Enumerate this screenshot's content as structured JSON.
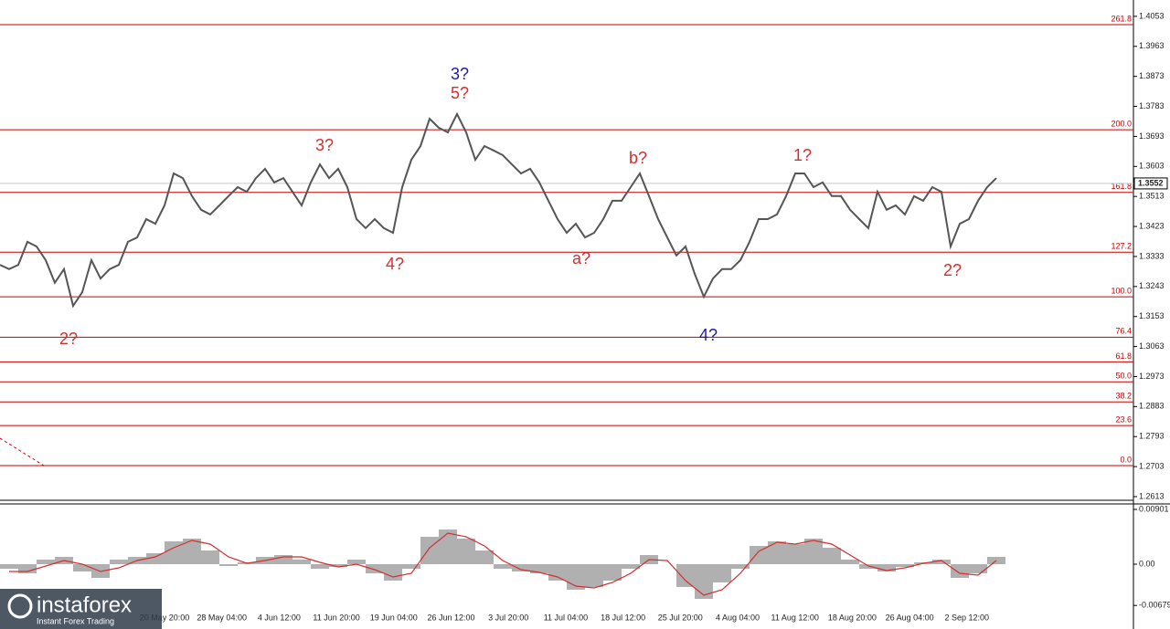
{
  "chart_data": {
    "type": "price_chart",
    "price": {
      "color": "#555555",
      "values": [
        1.3308,
        1.3295,
        1.3308,
        1.3377,
        1.3363,
        1.3322,
        1.3254,
        1.3295,
        1.3185,
        1.3226,
        1.3322,
        1.3267,
        1.3295,
        1.3308,
        1.3377,
        1.339,
        1.3445,
        1.3431,
        1.3486,
        1.3582,
        1.3568,
        1.3514,
        1.3473,
        1.3459,
        1.3486,
        1.3514,
        1.3541,
        1.3527,
        1.3568,
        1.3596,
        1.3555,
        1.3568,
        1.3527,
        1.3486,
        1.3555,
        1.3609,
        1.3568,
        1.3596,
        1.3541,
        1.3445,
        1.3418,
        1.3445,
        1.3418,
        1.3404,
        1.3541,
        1.3623,
        1.3664,
        1.3746,
        1.3719,
        1.3705,
        1.376,
        1.3705,
        1.3623,
        1.3664,
        1.3651,
        1.3637,
        1.3609,
        1.3582,
        1.3596,
        1.3555,
        1.35,
        1.3445,
        1.3404,
        1.3431,
        1.339,
        1.3404,
        1.3445,
        1.35,
        1.35,
        1.3541,
        1.3582,
        1.3514,
        1.3445,
        1.339,
        1.3336,
        1.3363,
        1.3281,
        1.3212,
        1.3267,
        1.3295,
        1.3295,
        1.3322,
        1.3377,
        1.3445,
        1.3445,
        1.3459,
        1.3514,
        1.3582,
        1.3582,
        1.3541,
        1.3555,
        1.3514,
        1.3514,
        1.3473,
        1.3445,
        1.3418,
        1.3527,
        1.3473,
        1.3486,
        1.3459,
        1.3514,
        1.35,
        1.3541,
        1.3527,
        1.3363,
        1.3431,
        1.3445,
        1.35,
        1.3541,
        1.3568
      ],
      "ylim": [
        1.2602,
        1.4102
      ],
      "yticks": [
        1.4053,
        1.3963,
        1.3873,
        1.3783,
        1.3693,
        1.3603,
        1.3513,
        1.3423,
        1.3333,
        1.3243,
        1.3153,
        1.3063,
        1.2973,
        1.2883,
        1.2793,
        1.2703,
        1.2613
      ],
      "last_price": 1.3552
    },
    "fib_levels": {
      "color": "#cc0000",
      "levels": [
        {
          "label": "261.8",
          "price": 1.4028
        },
        {
          "label": "200.0",
          "price": 1.3713
        },
        {
          "label": "161.8",
          "price": 1.3525
        },
        {
          "label": "127.2",
          "price": 1.3346
        },
        {
          "label": "100.0",
          "price": 1.3212
        },
        {
          "label": "76.4",
          "price": 1.3091
        },
        {
          "label": "61.8",
          "price": 1.3017
        },
        {
          "label": "50.0",
          "price": 1.2957
        },
        {
          "label": "38.2",
          "price": 1.2897
        },
        {
          "label": "23.6",
          "price": 1.2826
        },
        {
          "label": "0.0",
          "price": 1.2706
        }
      ]
    },
    "wave_labels": [
      {
        "text": "2?",
        "color": "#d32f2f"
      },
      {
        "text": "3?",
        "color": "#d32f2f"
      },
      {
        "text": "4?",
        "color": "#d32f2f"
      },
      {
        "text": "3?",
        "color": "#1a1aa6"
      },
      {
        "text": "5?",
        "color": "#d32f2f"
      },
      {
        "text": "a?",
        "color": "#d32f2f"
      },
      {
        "text": "b?",
        "color": "#d32f2f"
      },
      {
        "text": "4?",
        "color": "#1a1aa6"
      },
      {
        "text": "1?",
        "color": "#d32f2f"
      },
      {
        "text": "2?",
        "color": "#d32f2f"
      }
    ],
    "x_labels": [
      "20 May 20:00",
      "28 May 04:00",
      "4 Jun 12:00",
      "11 Jun 20:00",
      "19 Jun 04:00",
      "26 Jun 12:00",
      "3 Jul 20:00",
      "11 Jul 04:00",
      "18 Jul 12:00",
      "25 Jul 20:00",
      "4 Aug 04:00",
      "11 Aug 12:00",
      "18 Aug 20:00",
      "26 Aug 04:00",
      "2 Sep 12:00"
    ],
    "macd": {
      "histogram_color": "#b0b0b0",
      "signal_color": "#d32f2f",
      "histogram": [
        -0.00075,
        -0.0015,
        0.00075,
        0.0012,
        -0.0012,
        -0.00225,
        0.00075,
        0.0012,
        0.0018,
        0.00375,
        0.0042,
        0.00225,
        -0.0003,
        0.0003,
        0.0012,
        0.0015,
        0.00075,
        -0.00075,
        -0.00045,
        0.00075,
        -0.0015,
        -0.0027,
        -0.00075,
        0.0045,
        0.0057,
        0.0042,
        0.00225,
        -0.00075,
        -0.0012,
        -0.0015,
        -0.0027,
        -0.0042,
        -0.00375,
        -0.0027,
        -0.00075,
        0.0015,
        0,
        -0.00375,
        -0.0057,
        -0.003,
        -0.00075,
        0.003,
        0.00375,
        0.0033,
        0.0042,
        0.0027,
        0.00075,
        -0.00075,
        -0.0012,
        -0.00045,
        0.0003,
        0.00075,
        -0.00225,
        -0.0015,
        0.0012
      ],
      "signal": [
        -0.0012,
        -0.0012,
        -0.0003,
        0.0006,
        0,
        -0.0012,
        -0.0006,
        0.0006,
        0.0012,
        0.0027,
        0.0039,
        0.0033,
        0.0012,
        0.00015,
        0.0006,
        0.0012,
        0.0012,
        0.0003,
        -0.00045,
        0,
        -0.0009,
        -0.0021,
        -0.0015,
        0.0027,
        0.0051,
        0.0045,
        0.003,
        0.0006,
        -0.0009,
        -0.00135,
        -0.0021,
        -0.0036,
        -0.0039,
        -0.003,
        -0.0015,
        0.00075,
        0.0006,
        -0.0027,
        -0.0051,
        -0.0042,
        -0.0015,
        0.0021,
        0.0036,
        0.0033,
        0.0039,
        0.0033,
        0.0015,
        -0.0003,
        -0.00105,
        -0.0006,
        0.00015,
        0.0006,
        -0.0015,
        -0.0018,
        0.0006
      ],
      "ylim": [
        -0.01066,
        0.00991
      ],
      "yticks": [
        0.00901,
        {
          "value": 0,
          "label": "0.00"
        },
        -0.00679
      ]
    },
    "watermark": {
      "brand": "instaforex",
      "tagline": "Instant Forex Trading"
    }
  }
}
